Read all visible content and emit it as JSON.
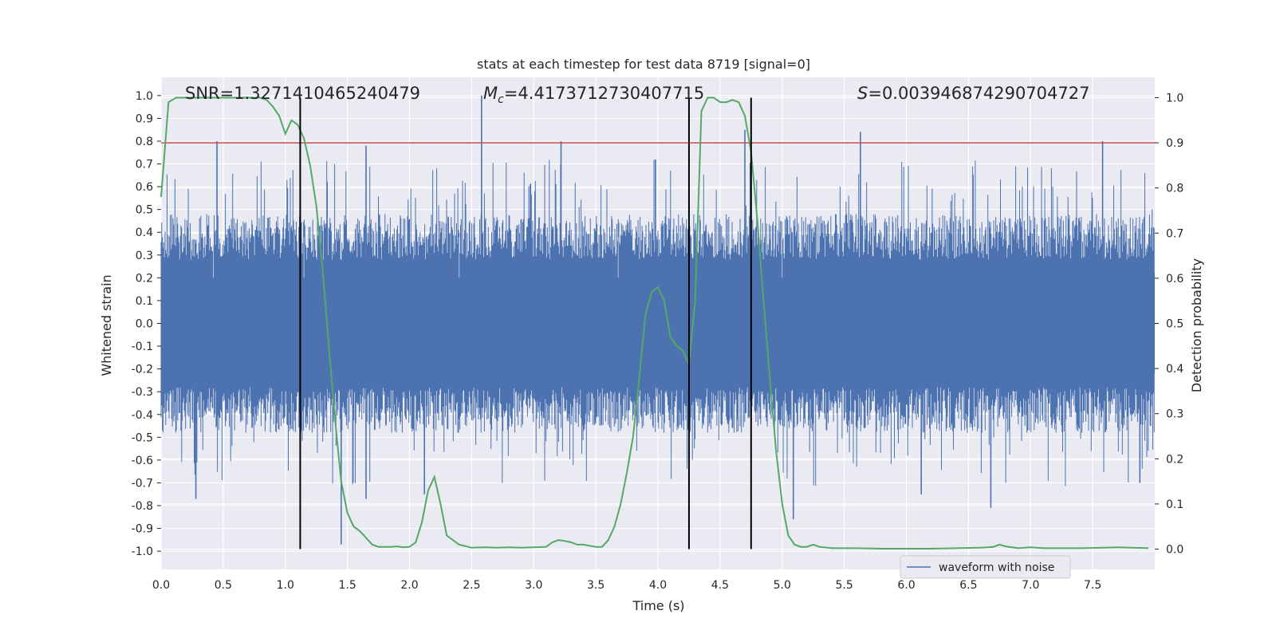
{
  "chart_data": {
    "type": "line",
    "title": "stats at each timestep for test data 8719 [signal=0]",
    "xlabel": "Time (s)",
    "ylabel": "Whitened strain",
    "y2label": "Detection probability",
    "xlim": [
      0.0,
      8.0
    ],
    "ylim": [
      -1.08,
      1.08
    ],
    "y2lim": [
      -0.045,
      1.045
    ],
    "xticks": [
      0.0,
      0.5,
      1.0,
      1.5,
      2.0,
      2.5,
      3.0,
      3.5,
      4.0,
      4.5,
      5.0,
      5.5,
      6.0,
      6.5,
      7.0,
      7.5
    ],
    "yticks": [
      1.0,
      0.9,
      0.8,
      0.7,
      0.6,
      0.5,
      0.4,
      0.3,
      0.2,
      0.1,
      0.0,
      -0.1,
      -0.2,
      -0.3,
      -0.4,
      -0.5,
      -0.6,
      -0.7,
      -0.8,
      -0.9,
      -1.0
    ],
    "y2ticks": [
      1.0,
      0.9,
      0.8,
      0.7,
      0.6,
      0.5,
      0.4,
      0.3,
      0.2,
      0.1,
      0.0
    ],
    "annotations": {
      "snr": "SNR=1.3271410465240479",
      "mc_symbol": "M",
      "mc_sub": "c",
      "mc_value": "=4.4173712730407715",
      "s_symbol": "S",
      "s_value": "=0.003946874290704727"
    },
    "legend": {
      "label": "waveform with noise",
      "placement": "lower-right"
    },
    "threshold": {
      "y2": 0.9,
      "color": "#c44e52"
    },
    "vertical_lines_x": [
      1.12,
      4.25,
      4.75
    ],
    "colors": {
      "waveform": "#4c72b0",
      "probability": "#55a868",
      "vlines": "#000000",
      "axes_bg": "#eaeaf2",
      "grid": "#ffffff"
    },
    "waveform": {
      "name": "waveform with noise",
      "band_amplitude": 0.22,
      "spikes": [
        {
          "x": 0.45,
          "y": 0.8
        },
        {
          "x": 0.28,
          "y": -0.77
        },
        {
          "x": 1.45,
          "y": -0.97
        },
        {
          "x": 1.65,
          "y": 0.78
        },
        {
          "x": 1.65,
          "y": -0.77
        },
        {
          "x": 2.12,
          "y": -0.75
        },
        {
          "x": 2.58,
          "y": 1.0
        },
        {
          "x": 3.22,
          "y": 0.8
        },
        {
          "x": 3.98,
          "y": 0.72
        },
        {
          "x": 4.7,
          "y": 0.85
        },
        {
          "x": 5.09,
          "y": -0.86
        },
        {
          "x": 5.63,
          "y": 0.84
        },
        {
          "x": 6.12,
          "y": -0.75
        },
        {
          "x": 6.68,
          "y": -0.81
        },
        {
          "x": 7.58,
          "y": 0.8
        },
        {
          "x": 7.88,
          "y": -0.7
        }
      ]
    },
    "probability": {
      "name": "detection probability",
      "x": [
        0.0,
        0.06,
        0.12,
        0.2,
        0.3,
        0.4,
        0.5,
        0.6,
        0.7,
        0.8,
        0.85,
        0.9,
        0.95,
        1.0,
        1.05,
        1.1,
        1.15,
        1.2,
        1.25,
        1.3,
        1.35,
        1.4,
        1.45,
        1.5,
        1.55,
        1.6,
        1.65,
        1.7,
        1.75,
        1.8,
        1.85,
        1.9,
        1.95,
        2.0,
        2.05,
        2.1,
        2.15,
        2.2,
        2.25,
        2.3,
        2.4,
        2.5,
        2.6,
        2.7,
        2.8,
        2.9,
        3.0,
        3.1,
        3.15,
        3.2,
        3.25,
        3.3,
        3.35,
        3.4,
        3.5,
        3.55,
        3.6,
        3.65,
        3.7,
        3.75,
        3.8,
        3.85,
        3.9,
        3.95,
        4.0,
        4.05,
        4.1,
        4.15,
        4.2,
        4.25,
        4.3,
        4.35,
        4.4,
        4.45,
        4.5,
        4.55,
        4.6,
        4.65,
        4.7,
        4.75,
        4.8,
        4.85,
        4.9,
        4.95,
        5.0,
        5.05,
        5.1,
        5.15,
        5.2,
        5.25,
        5.3,
        5.4,
        5.6,
        5.8,
        6.0,
        6.2,
        6.4,
        6.6,
        6.7,
        6.75,
        6.8,
        6.9,
        7.0,
        7.1,
        7.2,
        7.4,
        7.6,
        7.7,
        7.8,
        7.95
      ],
      "values": [
        0.78,
        0.99,
        1.0,
        1.0,
        1.0,
        1.0,
        1.0,
        1.0,
        1.0,
        1.0,
        0.995,
        0.98,
        0.96,
        0.92,
        0.95,
        0.94,
        0.91,
        0.85,
        0.76,
        0.62,
        0.45,
        0.29,
        0.15,
        0.08,
        0.05,
        0.04,
        0.025,
        0.01,
        0.005,
        0.005,
        0.005,
        0.006,
        0.004,
        0.005,
        0.015,
        0.06,
        0.13,
        0.16,
        0.1,
        0.03,
        0.01,
        0.003,
        0.004,
        0.003,
        0.004,
        0.003,
        0.004,
        0.005,
        0.015,
        0.02,
        0.018,
        0.015,
        0.01,
        0.01,
        0.005,
        0.005,
        0.02,
        0.05,
        0.1,
        0.17,
        0.25,
        0.38,
        0.52,
        0.57,
        0.58,
        0.55,
        0.47,
        0.45,
        0.44,
        0.41,
        0.55,
        0.97,
        1.0,
        1.0,
        0.99,
        0.99,
        0.995,
        0.99,
        0.96,
        0.88,
        0.73,
        0.55,
        0.38,
        0.22,
        0.1,
        0.03,
        0.01,
        0.005,
        0.005,
        0.01,
        0.005,
        0.002,
        0.002,
        0.001,
        0.001,
        0.001,
        0.002,
        0.003,
        0.005,
        0.01,
        0.006,
        0.002,
        0.004,
        0.002,
        0.002,
        0.002,
        0.003,
        0.004,
        0.003,
        0.002
      ]
    }
  }
}
